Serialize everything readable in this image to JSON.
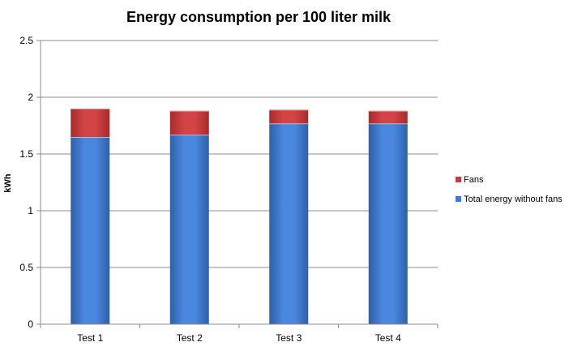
{
  "chart_data": {
    "type": "bar",
    "stacked": true,
    "title": "Energy consumption  per 100 liter milk",
    "xlabel": "",
    "ylabel": "kWh",
    "categories": [
      "Test 1",
      "Test 2",
      "Test 3",
      "Test 4"
    ],
    "series": [
      {
        "name": "Total energy without fans",
        "color": "#3F7BD6",
        "values": [
          1.65,
          1.67,
          1.77,
          1.77
        ]
      },
      {
        "name": "Fans",
        "color": "#C9383A",
        "values": [
          0.25,
          0.21,
          0.12,
          0.11
        ]
      }
    ],
    "ylim": [
      0,
      2.5
    ],
    "yticks": [
      "0",
      "0.5",
      "1",
      "1.5",
      "2",
      "2.5"
    ],
    "grid": true,
    "legend_position": "right",
    "legend_order": [
      "Fans",
      "Total energy without fans"
    ]
  }
}
